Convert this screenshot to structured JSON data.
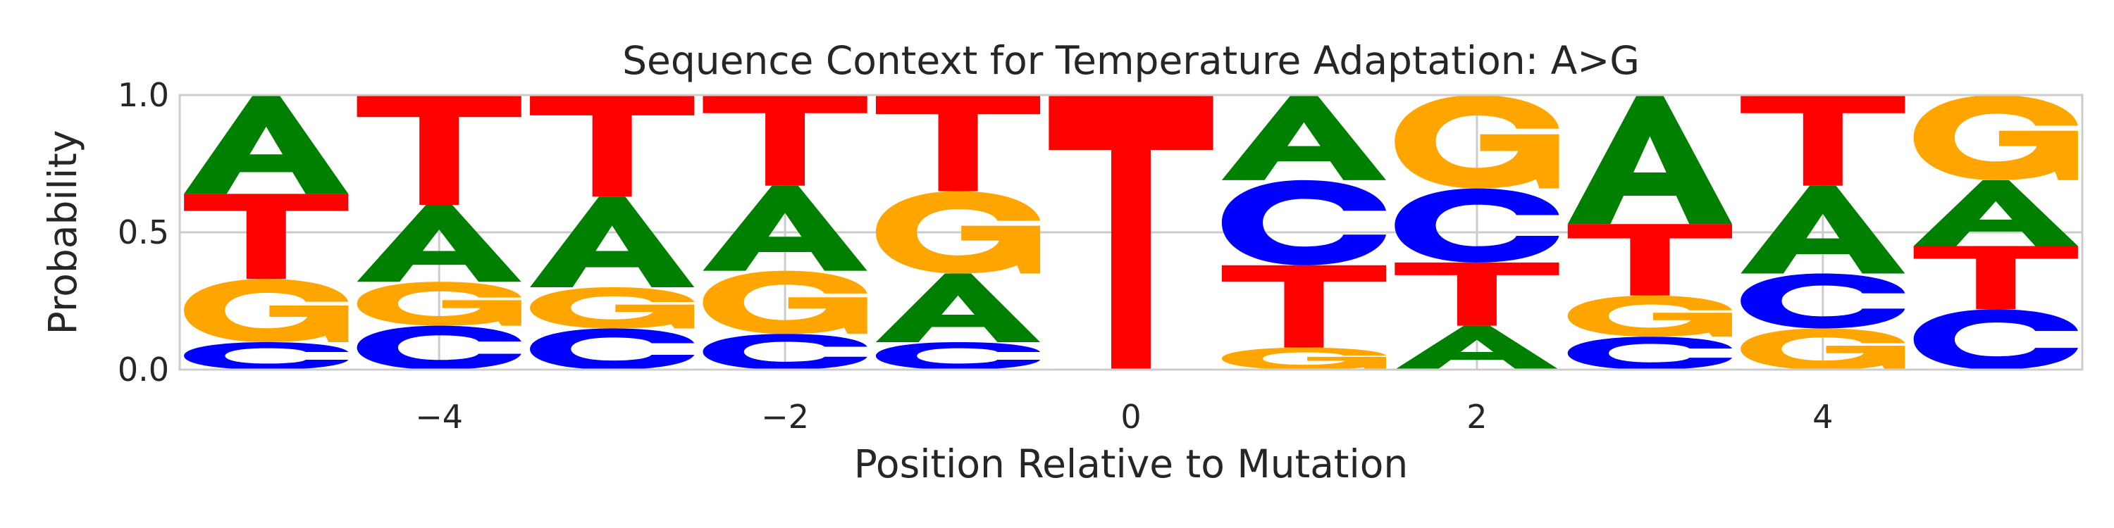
{
  "chart_data": {
    "type": "sequence-logo",
    "title": "Sequence Context for Temperature Adaptation: A>G",
    "xlabel": "Position Relative to Mutation",
    "ylabel": "Probability",
    "xlim": [
      -5.5,
      5.5
    ],
    "ylim": [
      0,
      1
    ],
    "xticks": [
      -4,
      -2,
      0,
      2,
      4
    ],
    "xtick_labels": [
      "−4",
      "−2",
      "0",
      "2",
      "4"
    ],
    "yticks": [
      0,
      0.5,
      1
    ],
    "ytick_labels": [
      "0.0",
      "0.5",
      "1.0"
    ],
    "grid": true,
    "colors": {
      "A": "#008000",
      "C": "#0000ff",
      "G": "#ffa500",
      "T": "#ff0000"
    },
    "positions": [
      {
        "x": -5,
        "stack": [
          {
            "base": "C",
            "p": 0.1
          },
          {
            "base": "G",
            "p": 0.23
          },
          {
            "base": "T",
            "p": 0.31
          },
          {
            "base": "A",
            "p": 0.36
          }
        ]
      },
      {
        "x": -4,
        "stack": [
          {
            "base": "C",
            "p": 0.16
          },
          {
            "base": "G",
            "p": 0.16
          },
          {
            "base": "A",
            "p": 0.28
          },
          {
            "base": "T",
            "p": 0.4
          }
        ]
      },
      {
        "x": -3,
        "stack": [
          {
            "base": "C",
            "p": 0.15
          },
          {
            "base": "G",
            "p": 0.15
          },
          {
            "base": "A",
            "p": 0.33
          },
          {
            "base": "T",
            "p": 0.37
          }
        ]
      },
      {
        "x": -2,
        "stack": [
          {
            "base": "C",
            "p": 0.13
          },
          {
            "base": "G",
            "p": 0.23
          },
          {
            "base": "A",
            "p": 0.31
          },
          {
            "base": "T",
            "p": 0.33
          }
        ]
      },
      {
        "x": -1,
        "stack": [
          {
            "base": "C",
            "p": 0.1
          },
          {
            "base": "A",
            "p": 0.25
          },
          {
            "base": "G",
            "p": 0.3
          },
          {
            "base": "T",
            "p": 0.35
          }
        ]
      },
      {
        "x": 0,
        "stack": [
          {
            "base": "T",
            "p": 1.0
          }
        ]
      },
      {
        "x": 1,
        "stack": [
          {
            "base": "G",
            "p": 0.08
          },
          {
            "base": "T",
            "p": 0.3
          },
          {
            "base": "C",
            "p": 0.31
          },
          {
            "base": "A",
            "p": 0.31
          }
        ]
      },
      {
        "x": 2,
        "stack": [
          {
            "base": "A",
            "p": 0.16
          },
          {
            "base": "T",
            "p": 0.23
          },
          {
            "base": "C",
            "p": 0.27
          },
          {
            "base": "G",
            "p": 0.34
          }
        ]
      },
      {
        "x": 3,
        "stack": [
          {
            "base": "C",
            "p": 0.12
          },
          {
            "base": "G",
            "p": 0.15
          },
          {
            "base": "T",
            "p": 0.26
          },
          {
            "base": "A",
            "p": 0.47
          }
        ]
      },
      {
        "x": 4,
        "stack": [
          {
            "base": "G",
            "p": 0.15
          },
          {
            "base": "C",
            "p": 0.2
          },
          {
            "base": "A",
            "p": 0.32
          },
          {
            "base": "T",
            "p": 0.33
          }
        ]
      },
      {
        "x": 5,
        "stack": [
          {
            "base": "C",
            "p": 0.22
          },
          {
            "base": "T",
            "p": 0.23
          },
          {
            "base": "A",
            "p": 0.24
          },
          {
            "base": "G",
            "p": 0.31
          }
        ]
      }
    ]
  }
}
